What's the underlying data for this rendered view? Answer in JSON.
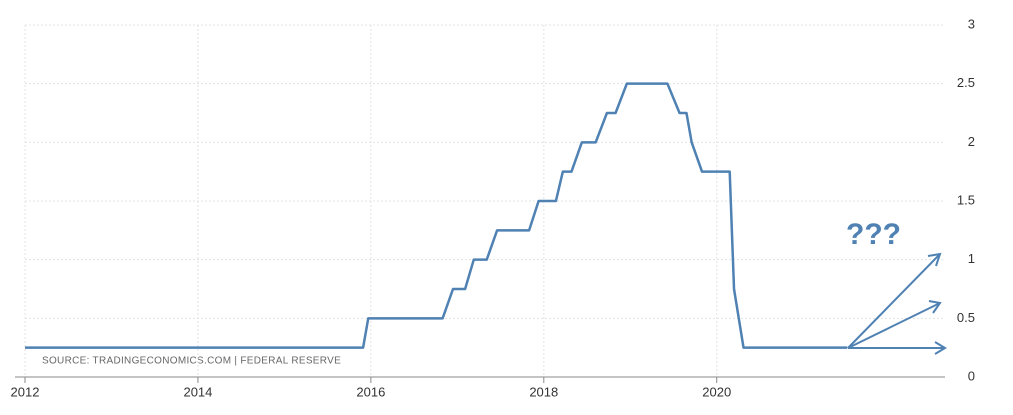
{
  "chart_data": {
    "type": "line",
    "source": "SOURCE: TRADINGECONOMICS.COM  |  FEDERAL RESERVE",
    "annotation": "???",
    "x": [
      2012.0,
      2015.91,
      2015.97,
      2016.83,
      2016.95,
      2017.09,
      2017.19,
      2017.34,
      2017.46,
      2017.83,
      2017.94,
      2018.14,
      2018.22,
      2018.32,
      2018.44,
      2018.6,
      2018.73,
      2018.83,
      2018.96,
      2019.43,
      2019.57,
      2019.65,
      2019.71,
      2019.83,
      2020.15,
      2020.2,
      2020.31,
      2021.51
    ],
    "series": [
      {
        "color": "#4f81b3",
        "values": [
          0.25,
          0.25,
          0.5,
          0.5,
          0.75,
          0.75,
          1.0,
          1.0,
          1.25,
          1.25,
          1.5,
          1.5,
          1.75,
          1.75,
          2.0,
          2.0,
          2.25,
          2.25,
          2.5,
          2.5,
          2.25,
          2.25,
          2.0,
          1.75,
          1.75,
          0.75,
          0.25,
          0.25
        ]
      }
    ],
    "xlim": [
      2012,
      2022.64
    ],
    "xticks": [
      2012,
      2014,
      2016,
      2018,
      2020
    ],
    "ylim": [
      0,
      3
    ],
    "yticks": [
      0,
      0.5,
      1,
      1.5,
      2,
      2.5,
      3
    ],
    "grid": true
  }
}
